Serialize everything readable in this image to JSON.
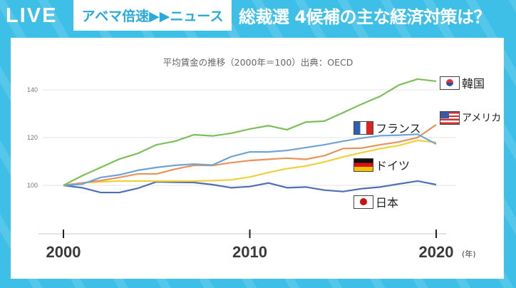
{
  "header": {
    "live_label": "LIVE",
    "brand": "アベマ倍速▶▶ニュース",
    "headline": "総裁選 4候補の主な経済対策は？"
  },
  "colors": {
    "background": "#3dbfe8",
    "korea": "#7cbf5a",
    "usa": "#e8935a",
    "france": "#6fa3d6",
    "germany": "#f0d13c",
    "japan": "#4f6fb5"
  },
  "chart_data": {
    "type": "line",
    "title": "平均賃金の推移（2000年＝100）出典：OECD",
    "xlabel": "",
    "x_unit": "(年)",
    "ylabel": "",
    "x": [
      2000,
      2001,
      2002,
      2003,
      2004,
      2005,
      2006,
      2007,
      2008,
      2009,
      2010,
      2011,
      2012,
      2013,
      2014,
      2015,
      2016,
      2017,
      2018,
      2019,
      2020
    ],
    "xticks": [
      "2000",
      "2010",
      "2020"
    ],
    "yticks": [
      "100",
      "120",
      "140"
    ],
    "ylim": [
      92,
      148
    ],
    "grid": true,
    "series": [
      {
        "name": "韓国",
        "flag": "korea-flag",
        "color": "#7cbf5a",
        "values": [
          100,
          104,
          107.5,
          111,
          113.4,
          117,
          118.5,
          121.2,
          120.7,
          121.8,
          123.6,
          125,
          123.3,
          126.5,
          126.9,
          130.4,
          134,
          137.3,
          142,
          144.5,
          143.6
        ]
      },
      {
        "name": "アメリカ",
        "flag": "usa-flag",
        "color": "#e8935a",
        "values": [
          100,
          101,
          102,
          103.3,
          104.8,
          104.8,
          106.8,
          108.4,
          108.3,
          109.5,
          110.4,
          110.9,
          111.4,
          110.9,
          112.4,
          115.4,
          115.6,
          117,
          118.2,
          120,
          125.4
        ]
      },
      {
        "name": "フランス",
        "flag": "france-flag",
        "color": "#6fa3d6",
        "values": [
          100,
          100.5,
          103.3,
          104.4,
          106.3,
          107.5,
          108.4,
          108.9,
          108.5,
          112,
          114,
          114,
          114.6,
          115.8,
          117,
          118.5,
          119.8,
          120.8,
          121,
          121.4,
          117.3
        ]
      },
      {
        "name": "ドイツ",
        "flag": "germany-flag",
        "color": "#f0d13c",
        "values": [
          100,
          101,
          101.5,
          101.8,
          101.8,
          101.8,
          101.8,
          101.8,
          102,
          102.3,
          103.5,
          105.4,
          107,
          108.1,
          109.8,
          111.9,
          113.7,
          115.4,
          116.7,
          118.8,
          118
        ]
      },
      {
        "name": "日本",
        "flag": "japan-flag",
        "color": "#4f6fb5",
        "values": [
          100,
          99,
          97,
          97,
          98.8,
          101.5,
          101.3,
          101.2,
          100.3,
          99,
          99.5,
          101,
          99,
          99.3,
          98,
          97.4,
          98.6,
          99.3,
          100.6,
          101.8,
          100.3
        ]
      }
    ]
  }
}
